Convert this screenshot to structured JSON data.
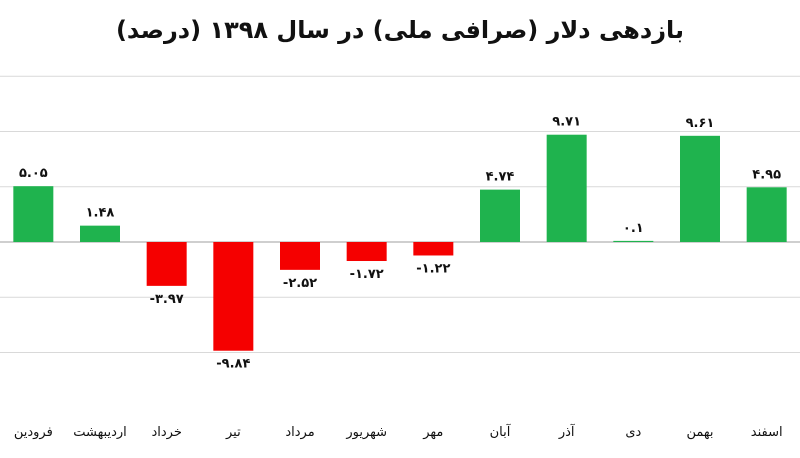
{
  "chart_data": {
    "type": "bar",
    "title": "بازدهی دلار (صرافی ملی) در سال ۱۳۹۸ (درصد)",
    "categories": [
      "فرودین",
      "اردیبهشت",
      "خرداد",
      "تیر",
      "مرداد",
      "شهریور",
      "مهر",
      "آبان",
      "آذر",
      "دی",
      "بهمن",
      "اسفند"
    ],
    "values": [
      5.05,
      1.48,
      -3.97,
      -9.84,
      -2.52,
      -1.72,
      -1.22,
      4.74,
      9.71,
      0.1,
      9.61,
      4.95
    ],
    "value_labels": [
      "۵.۰۵",
      "۱.۴۸",
      "-۳.۹۷",
      "-۹.۸۴",
      "-۲.۵۲",
      "-۱.۷۲",
      "-۱.۲۲",
      "۴.۷۴",
      "۹.۷۱",
      "۰.۱",
      "۹.۶۱",
      "۴.۹۵"
    ],
    "ylim": [
      -10,
      15
    ],
    "grid": true,
    "legend": "none",
    "colors": {
      "positive": "#1fb34e",
      "negative": "#f50000",
      "grid": "#d9d9d9",
      "axis": "#bfbfbf"
    }
  }
}
